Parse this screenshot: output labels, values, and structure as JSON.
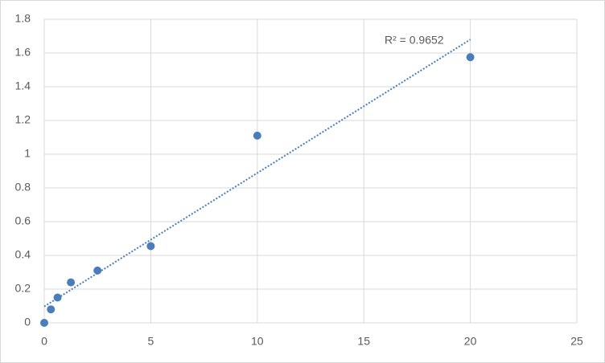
{
  "chart_data": {
    "type": "scatter",
    "annotation": "R² = 0.9652",
    "x": [
      0,
      0.3125,
      0.625,
      1.25,
      2.5,
      5,
      10,
      20
    ],
    "values": [
      0,
      0.08,
      0.15,
      0.24,
      0.31,
      0.455,
      1.11,
      1.575
    ],
    "color": "#4a7ebb",
    "trendline": {
      "x": [
        0,
        20
      ],
      "values": [
        0.097,
        1.68
      ],
      "color": "#4a7ebb"
    },
    "xlim": [
      0,
      25
    ],
    "xticks": [
      0,
      5,
      10,
      15,
      20,
      25
    ],
    "ylim": [
      0,
      1.8
    ],
    "yticks": [
      0,
      0.2,
      0.4,
      0.6,
      0.8,
      1,
      1.2,
      1.4,
      1.6,
      1.8
    ],
    "grid": true
  }
}
